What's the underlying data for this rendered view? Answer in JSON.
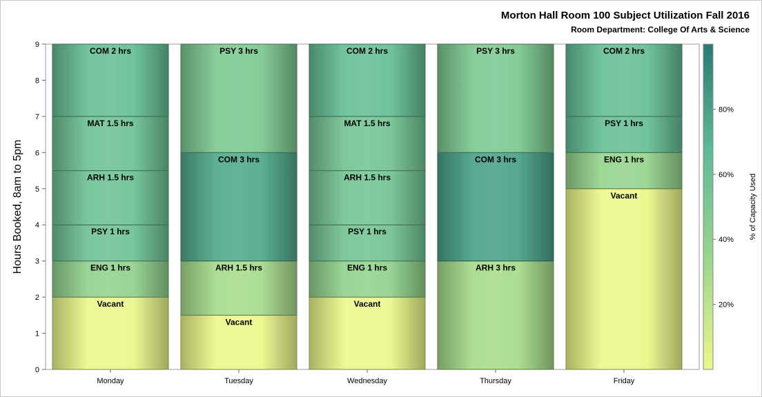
{
  "chart_data": {
    "type": "bar",
    "stacked": true,
    "title": "Morton Hall Room 100 Subject Utilization Fall 2016",
    "subtitle": "Room Department:  College Of Arts & Science",
    "ylabel": "Hours Booked, 8am to 5pm",
    "xlabel": "",
    "ylim": [
      0,
      9
    ],
    "yticks": [
      "0",
      "1",
      "2",
      "3",
      "4",
      "5",
      "6",
      "7",
      "8",
      "9"
    ],
    "categories": [
      "Monday",
      "Tuesday",
      "Wednesday",
      "Thursday",
      "Friday"
    ],
    "colorbar": {
      "label": "% of Capacity Used",
      "range": [
        0,
        100
      ],
      "ticks": [
        "20%",
        "40%",
        "60%",
        "80%"
      ],
      "colors": [
        "#ecf78a",
        "#9ad68c",
        "#5fbb97",
        "#2a7a73"
      ]
    },
    "stacks": [
      {
        "day": "Monday",
        "segments": [
          {
            "label": "Vacant",
            "start": 0,
            "end": 2,
            "capacity": 0
          },
          {
            "label": "ENG 1 hrs",
            "start": 2,
            "end": 3,
            "capacity": 38
          },
          {
            "label": "PSY 1 hrs",
            "start": 3,
            "end": 4,
            "capacity": 58
          },
          {
            "label": "ARH 1.5 hrs",
            "start": 4,
            "end": 5.5,
            "capacity": 58
          },
          {
            "label": "MAT 1.5 hrs",
            "start": 5.5,
            "end": 7,
            "capacity": 58
          },
          {
            "label": "COM 2 hrs",
            "start": 7,
            "end": 9,
            "capacity": 62
          }
        ]
      },
      {
        "day": "Tuesday",
        "segments": [
          {
            "label": "Vacant",
            "start": 0,
            "end": 1.5,
            "capacity": 0
          },
          {
            "label": "ARH 1.5 hrs",
            "start": 1.5,
            "end": 3,
            "capacity": 28
          },
          {
            "label": "COM 3 hrs",
            "start": 3,
            "end": 6,
            "capacity": 76
          },
          {
            "label": "PSY 3 hrs",
            "start": 6,
            "end": 9,
            "capacity": 50
          }
        ]
      },
      {
        "day": "Wednesday",
        "segments": [
          {
            "label": "Vacant",
            "start": 0,
            "end": 2,
            "capacity": 0
          },
          {
            "label": "ENG 1 hrs",
            "start": 2,
            "end": 3,
            "capacity": 38
          },
          {
            "label": "PSY 1 hrs",
            "start": 3,
            "end": 4,
            "capacity": 55
          },
          {
            "label": "ARH 1.5 hrs",
            "start": 4,
            "end": 5.5,
            "capacity": 55
          },
          {
            "label": "MAT 1.5 hrs",
            "start": 5.5,
            "end": 7,
            "capacity": 55
          },
          {
            "label": "COM 2 hrs",
            "start": 7,
            "end": 9,
            "capacity": 62
          }
        ]
      },
      {
        "day": "Thursday",
        "segments": [
          {
            "label": "ARH 3 hrs",
            "start": 0,
            "end": 3,
            "capacity": 28
          },
          {
            "label": "COM 3 hrs",
            "start": 3,
            "end": 6,
            "capacity": 80
          },
          {
            "label": "PSY 3 hrs",
            "start": 6,
            "end": 9,
            "capacity": 50
          }
        ]
      },
      {
        "day": "Friday",
        "segments": [
          {
            "label": "Vacant",
            "start": 0,
            "end": 5,
            "capacity": 0
          },
          {
            "label": "ENG 1 hrs",
            "start": 5,
            "end": 6,
            "capacity": 36
          },
          {
            "label": "PSY 1 hrs",
            "start": 6,
            "end": 7,
            "capacity": 62
          },
          {
            "label": "COM 2 hrs",
            "start": 7,
            "end": 9,
            "capacity": 62
          }
        ]
      }
    ]
  }
}
